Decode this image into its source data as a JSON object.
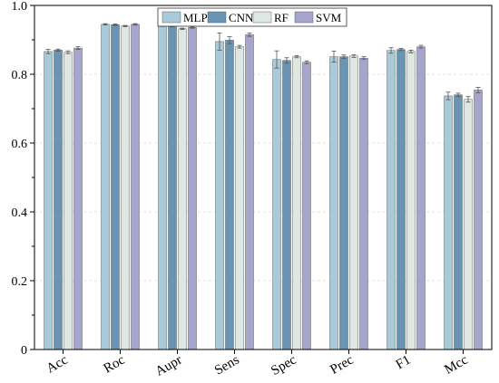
{
  "chart_data": {
    "type": "bar",
    "categories": [
      "Acc",
      "Roc",
      "Aupr",
      "Sens",
      "Spec",
      "Prec",
      "F1",
      "Mcc"
    ],
    "ylim": [
      0,
      1.0
    ],
    "yticks": [
      0,
      0.2,
      0.4,
      0.6,
      0.8,
      1.0
    ],
    "ytick_labels": [
      "0",
      "0.2",
      "0.4",
      "0.6",
      "0.8",
      "1.0"
    ],
    "grid": true,
    "legend_position": "top-center",
    "series": [
      {
        "name": "MLP",
        "color": "#a9cad9",
        "values": [
          0.866,
          0.945,
          0.941,
          0.895,
          0.843,
          0.851,
          0.869,
          0.737
        ],
        "errors": [
          0.006,
          0.002,
          0.002,
          0.025,
          0.025,
          0.016,
          0.008,
          0.011
        ]
      },
      {
        "name": "CNN",
        "color": "#6a94b3",
        "values": [
          0.87,
          0.944,
          0.94,
          0.899,
          0.84,
          0.851,
          0.872,
          0.74
        ],
        "errors": [
          0.003,
          0.002,
          0.002,
          0.01,
          0.008,
          0.005,
          0.003,
          0.005
        ]
      },
      {
        "name": "RF",
        "color": "#dfe7e2",
        "values": [
          0.864,
          0.94,
          0.932,
          0.88,
          0.851,
          0.853,
          0.866,
          0.727
        ],
        "errors": [
          0.004,
          0.002,
          0.002,
          0.004,
          0.003,
          0.004,
          0.004,
          0.008
        ]
      },
      {
        "name": "SVM",
        "color": "#a6a5cc",
        "values": [
          0.876,
          0.945,
          0.936,
          0.915,
          0.835,
          0.847,
          0.88,
          0.754
        ],
        "errors": [
          0.004,
          0.002,
          0.002,
          0.005,
          0.004,
          0.004,
          0.004,
          0.008
        ]
      }
    ]
  }
}
